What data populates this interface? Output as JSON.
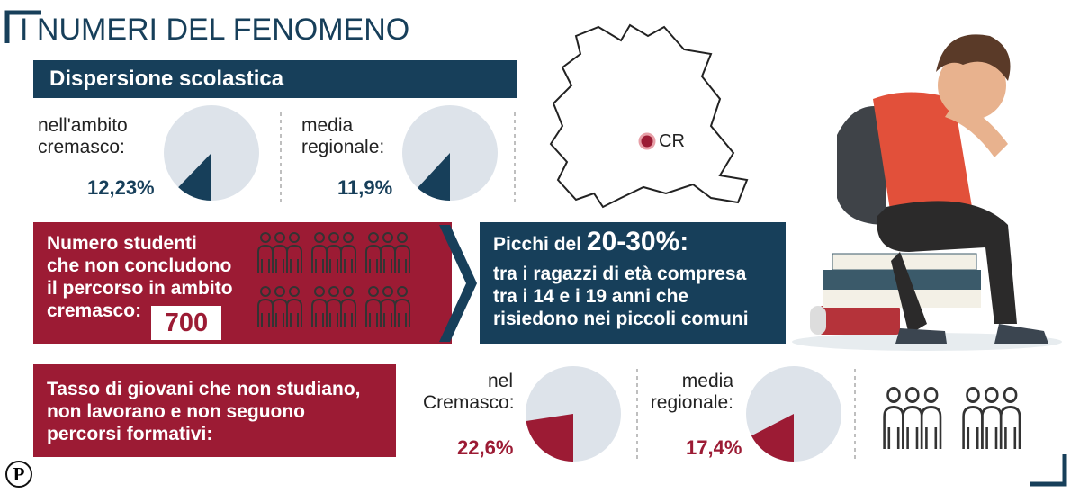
{
  "title": "I NUMERI DEL FENOMENO",
  "dispersion": {
    "heading": "Dispersione scolastica",
    "pies": [
      {
        "label_lines": [
          "nell'ambito",
          "cremasco:"
        ],
        "value": 12.23,
        "value_label": "12,23%"
      },
      {
        "label_lines": [
          "media",
          "regionale:"
        ],
        "value": 11.9,
        "value_label": "11,9%"
      }
    ]
  },
  "map": {
    "marker": "CR"
  },
  "students": {
    "lines": [
      "Numero studenti",
      "che non concludono",
      "il percorso in ambito",
      "cremasco:"
    ],
    "count": "700"
  },
  "peaks": {
    "lead": "Picchi del",
    "highlight": "20-30%:",
    "lines": [
      "tra i ragazzi di età compresa",
      "tra i 14 e i 19 anni che",
      "risiedono nei piccoli comuni"
    ]
  },
  "neet": {
    "lines": [
      "Tasso di giovani che non studiano,",
      "non lavorano e non seguono",
      "percorsi formativi:"
    ],
    "pies": [
      {
        "label_lines": [
          "nel",
          "Cremasco:"
        ],
        "value": 22.6,
        "value_label": "22,6%"
      },
      {
        "label_lines": [
          "media",
          "regionale:"
        ],
        "value": 17.4,
        "value_label": "17,4%"
      }
    ]
  },
  "logo": "P"
}
